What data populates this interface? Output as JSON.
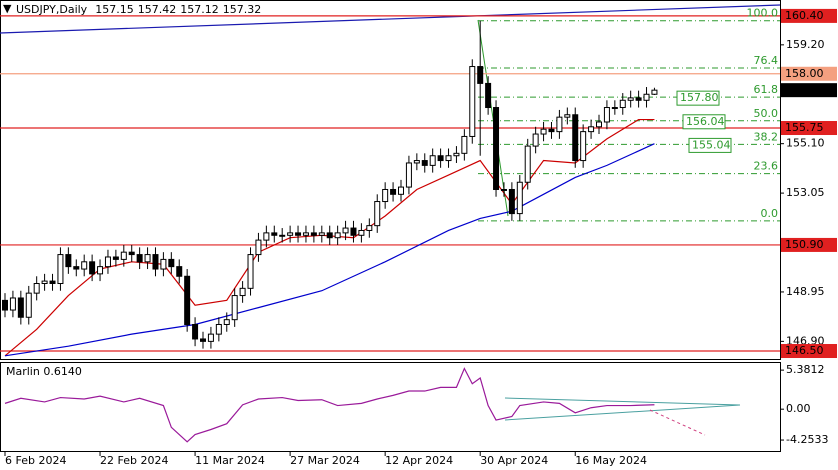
{
  "chart_data": [
    {
      "type": "candlestick",
      "symbol": "USDJPY,Daily",
      "categories": [
        "6 Feb 2024",
        null,
        null,
        null,
        null,
        null,
        null,
        null,
        null,
        null,
        null,
        null,
        "22 Feb 2024",
        null,
        null,
        null,
        null,
        null,
        null,
        null,
        null,
        null,
        null,
        null,
        "11 Mar 2024",
        null,
        null,
        null,
        null,
        null,
        null,
        null,
        null,
        null,
        null,
        null,
        "27 Mar 2024",
        null,
        null,
        null,
        null,
        null,
        null,
        null,
        null,
        null,
        null,
        null,
        "12 Apr 2024",
        null,
        null,
        null,
        null,
        null,
        null,
        null,
        null,
        null,
        null,
        null,
        "30 Apr 2024",
        null,
        null,
        null,
        null,
        null,
        null,
        null,
        null,
        null,
        null,
        null,
        "16 May 2024",
        null,
        null,
        null,
        null,
        null,
        null,
        null,
        null,
        null,
        null
      ],
      "open": [
        148.6,
        148.2,
        148.7,
        147.9,
        148.9,
        149.3,
        149.4,
        149.3,
        150.5,
        150.0,
        149.9,
        150.2,
        149.7,
        150.0,
        150.4,
        150.3,
        150.6,
        150.5,
        150.2,
        150.5,
        149.9,
        150.3,
        150.0,
        149.6,
        147.6,
        147.0,
        146.9,
        147.2,
        147.6,
        147.8,
        148.8,
        149.1,
        150.5,
        151.1,
        151.4,
        151.3,
        151.3,
        151.4,
        151.3,
        151.4,
        151.3,
        151.4,
        151.2,
        151.4,
        151.6,
        151.3,
        151.5,
        151.7,
        152.7,
        153.2,
        153.0,
        153.3,
        154.3,
        154.4,
        154.2,
        154.6,
        154.4,
        154.6,
        154.7,
        155.4,
        158.3,
        157.6,
        156.6,
        153.2,
        153.2,
        152.2,
        153.5,
        155.0,
        155.5,
        155.7,
        155.6,
        156.2,
        156.3,
        154.4,
        155.6,
        155.8,
        156.0,
        156.6,
        156.6,
        156.9,
        157.0,
        156.9,
        157.15
      ],
      "high": [
        148.9,
        149.0,
        149.0,
        149.2,
        149.6,
        149.7,
        149.7,
        150.8,
        150.8,
        150.3,
        150.5,
        150.5,
        150.3,
        150.7,
        150.7,
        150.9,
        150.9,
        150.8,
        150.8,
        150.8,
        150.6,
        150.6,
        150.3,
        149.9,
        147.9,
        147.3,
        147.5,
        147.9,
        148.1,
        149.1,
        149.4,
        150.8,
        151.4,
        151.7,
        151.7,
        151.6,
        151.7,
        151.7,
        151.7,
        151.7,
        151.7,
        151.7,
        151.7,
        151.9,
        151.9,
        151.8,
        152.0,
        153.0,
        153.5,
        153.5,
        153.6,
        154.6,
        154.7,
        154.7,
        154.9,
        154.9,
        154.9,
        155.0,
        155.7,
        158.6,
        160.2,
        157.9,
        156.9,
        153.5,
        153.5,
        153.8,
        155.3,
        155.8,
        156.0,
        156.0,
        156.5,
        156.6,
        156.6,
        155.9,
        156.1,
        156.3,
        156.9,
        156.9,
        157.2,
        157.3,
        157.3,
        157.45,
        157.42
      ],
      "low": [
        147.9,
        147.9,
        147.6,
        147.6,
        148.6,
        149.0,
        149.0,
        149.0,
        149.7,
        149.6,
        149.6,
        149.4,
        149.4,
        149.7,
        150.0,
        150.0,
        150.2,
        149.9,
        149.9,
        149.6,
        149.6,
        149.7,
        149.3,
        147.3,
        146.7,
        146.6,
        146.6,
        146.9,
        147.3,
        147.5,
        148.5,
        148.8,
        150.2,
        150.8,
        151.0,
        151.0,
        151.0,
        151.0,
        151.0,
        151.0,
        151.0,
        150.9,
        150.9,
        151.1,
        151.0,
        151.0,
        151.2,
        151.4,
        152.4,
        152.7,
        152.7,
        153.0,
        154.0,
        153.9,
        153.9,
        154.1,
        154.1,
        154.3,
        154.4,
        155.1,
        154.6,
        156.3,
        152.9,
        152.9,
        151.9,
        151.9,
        153.2,
        154.7,
        155.2,
        155.3,
        155.3,
        155.9,
        154.1,
        154.1,
        155.3,
        155.5,
        155.7,
        156.3,
        156.3,
        156.6,
        156.6,
        156.6,
        157.12
      ],
      "close": [
        148.2,
        148.7,
        147.9,
        148.9,
        149.3,
        149.4,
        149.3,
        150.5,
        150.0,
        149.9,
        150.2,
        149.7,
        150.0,
        150.4,
        150.3,
        150.6,
        150.5,
        150.2,
        150.5,
        149.9,
        150.3,
        150.0,
        149.6,
        147.6,
        147.0,
        146.9,
        147.2,
        147.6,
        147.8,
        148.8,
        149.1,
        150.5,
        151.1,
        151.4,
        151.3,
        151.3,
        151.4,
        151.3,
        151.4,
        151.3,
        151.4,
        151.2,
        151.4,
        151.6,
        151.3,
        151.5,
        151.7,
        152.7,
        153.2,
        153.0,
        153.3,
        154.3,
        154.4,
        154.2,
        154.6,
        154.4,
        154.6,
        154.7,
        155.4,
        158.3,
        157.6,
        156.6,
        153.2,
        153.2,
        152.2,
        153.5,
        155.0,
        155.5,
        155.7,
        155.6,
        156.2,
        156.3,
        154.4,
        155.6,
        155.8,
        156.0,
        156.6,
        156.6,
        156.9,
        157.0,
        156.9,
        157.15,
        157.32
      ],
      "bull_color": "#ffffff",
      "bear_color": "#000000",
      "ylim": [
        146.21,
        161.06
      ],
      "yticks": [
        {
          "value": 159.2,
          "label": "159.20"
        },
        {
          "value": 155.1,
          "label": "155.10"
        },
        153.05,
        148.95,
        {
          "value": 146.9,
          "label": "146.90"
        }
      ],
      "lines": [
        {
          "color": "#cc0000",
          "x": [
            0,
            4,
            8,
            12,
            16,
            20,
            24,
            28,
            32,
            36,
            40,
            44,
            48,
            52,
            56,
            60,
            64,
            68,
            72,
            76,
            80,
            82
          ],
          "values": [
            146.3,
            147.4,
            148.8,
            149.9,
            150.2,
            150.1,
            148.4,
            148.6,
            150.6,
            151.2,
            151.3,
            151.2,
            152.1,
            153.2,
            153.8,
            154.4,
            152.6,
            154.4,
            154.3,
            155.3,
            156.1,
            156.1
          ]
        },
        {
          "color": "#0000cc",
          "x": [
            0,
            8,
            16,
            24,
            32,
            40,
            48,
            56,
            60,
            64,
            68,
            72,
            76,
            80,
            82
          ],
          "values": [
            146.3,
            146.7,
            147.2,
            147.6,
            148.3,
            149.0,
            150.2,
            151.5,
            152.0,
            152.3,
            153.0,
            153.7,
            154.2,
            154.8,
            155.1
          ]
        }
      ],
      "levels": [
        {
          "value": 160.4,
          "label": "160.40",
          "color": "#e02020"
        },
        {
          "value": 158.0,
          "label": "158.00",
          "color": "#f4a080"
        },
        {
          "value": 155.75,
          "color": "#e02020"
        },
        {
          "value": 150.9,
          "label": "150.90",
          "color": "#e02020"
        },
        {
          "value": 146.5,
          "label": "146.50",
          "color": "#e02020"
        }
      ],
      "fib": {
        "color": "#2e9a2e",
        "levels": [
          {
            "ratio": "100.0",
            "value": 160.2
          },
          {
            "ratio": "76.4",
            "value": 158.24
          },
          {
            "ratio": "61.8",
            "value": 157.03,
            "target": "157.80"
          },
          {
            "ratio": "50.0",
            "value": 156.05,
            "target": "156.04"
          },
          {
            "ratio": "38.2",
            "value": 155.07,
            "target": "155.04"
          },
          {
            "ratio": "23.6",
            "value": 153.86
          },
          {
            "ratio": "0.0",
            "value": 151.9
          }
        ]
      }
    },
    {
      "type": "line",
      "title": "Marlin 0.6140",
      "color": "#9a1a9a",
      "x": [
        0,
        2,
        5,
        7,
        10,
        12,
        15,
        17,
        20,
        21,
        23,
        24,
        26,
        28,
        30,
        32,
        35,
        37,
        40,
        42,
        45,
        47,
        49,
        51,
        53,
        55,
        57,
        58,
        59,
        60,
        61,
        62,
        64,
        65,
        68,
        70,
        72,
        74,
        76,
        79,
        82
      ],
      "values": [
        0.8,
        1.5,
        1.0,
        1.6,
        1.4,
        1.8,
        1.0,
        1.5,
        0.5,
        -2.5,
        -4.5,
        -3.5,
        -2.8,
        -2.0,
        0.6,
        1.4,
        1.6,
        1.2,
        1.3,
        0.5,
        0.8,
        1.4,
        1.9,
        2.5,
        2.5,
        3.0,
        3.0,
        5.6,
        3.5,
        4.3,
        0.5,
        -1.5,
        -1.0,
        0.5,
        1.0,
        0.8,
        -0.5,
        0.2,
        0.5,
        0.5,
        0.614
      ],
      "ylim": [
        -5.9,
        6.5
      ],
      "yticks": [
        5.3812,
        {
          "value": 0,
          "label": "0.00"
        },
        -4.2533
      ]
    }
  ]
}
